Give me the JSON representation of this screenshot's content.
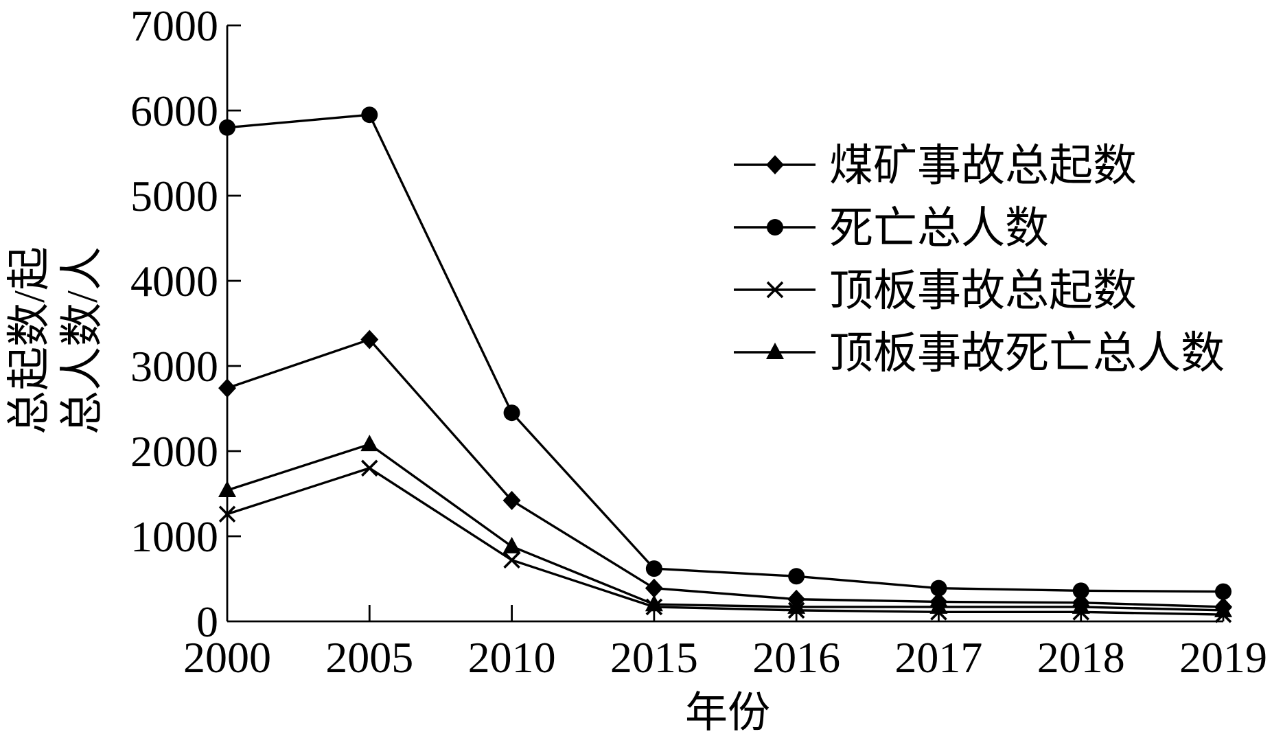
{
  "chart_data": {
    "type": "line",
    "x": [
      "2000",
      "2005",
      "2010",
      "2015",
      "2016",
      "2017",
      "2018",
      "2019"
    ],
    "series": [
      {
        "name": "煤矿事故总起数",
        "marker": "diamond",
        "values": [
          2740,
          3310,
          1420,
          390,
          260,
          230,
          220,
          170
        ]
      },
      {
        "name": "死亡总人数",
        "marker": "circle",
        "values": [
          5800,
          5950,
          2450,
          620,
          530,
          390,
          360,
          350
        ]
      },
      {
        "name": "顶板事故总起数",
        "marker": "x",
        "values": [
          1260,
          1800,
          720,
          170,
          130,
          110,
          110,
          80
        ]
      },
      {
        "name": "顶板事故死亡总人数",
        "marker": "triangle",
        "values": [
          1540,
          2080,
          880,
          200,
          170,
          170,
          170,
          130
        ]
      }
    ],
    "xlabel": "年份",
    "ylabel": [
      "总起数/起",
      "总人数/人"
    ],
    "ylim": [
      0,
      7000
    ],
    "yticks": [
      0,
      1000,
      2000,
      3000,
      4000,
      5000,
      6000,
      7000
    ],
    "grid": false,
    "legend": "top-right",
    "line_color": "#000000"
  }
}
